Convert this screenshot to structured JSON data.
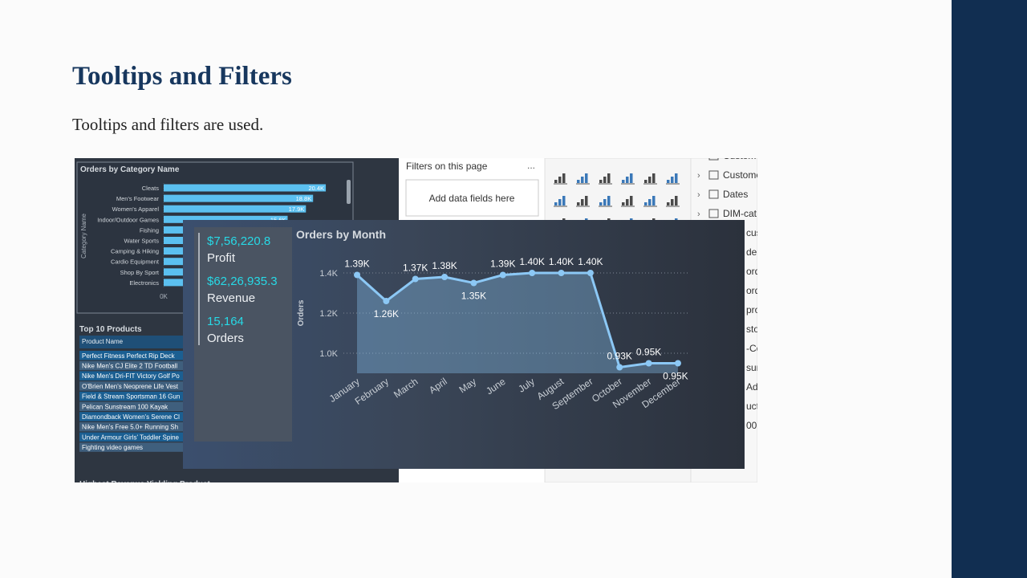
{
  "slide": {
    "title": "Tooltips and Filters",
    "body": "Tooltips and filters are used."
  },
  "screenshot": {
    "bar_chart": {
      "type": "bar",
      "title": "Orders by Category Name",
      "y_label": "Category Name",
      "categories": [
        "Cleats",
        "Men's Footwear",
        "Women's Apparel",
        "Indoor/Outdoor Games",
        "Fishing",
        "Water Sports",
        "Camping & Hiking",
        "Cardio Equipment",
        "Shop By Sport",
        "Electronics"
      ],
      "values": [
        20.4,
        18.8,
        17.9,
        15.6,
        15.0,
        13.2,
        12.4,
        11.5,
        10.6,
        9.8
      ],
      "value_labels": [
        "20.4K",
        "18.8K",
        "17.9K",
        "15.6K",
        null,
        null,
        null,
        null,
        null,
        null
      ],
      "xlim": [
        0,
        21
      ],
      "xticks": [
        {
          "value": 0,
          "label": "0K"
        }
      ],
      "color": "#5bc0f0"
    },
    "products": {
      "title": "Top 10 Products",
      "header": "Product Name",
      "rows": [
        "Perfect Fitness Perfect Rip Deck",
        "Nike Men's CJ Elite 2 TD Football",
        "Nike Men's Dri-FIT Victory Golf Po",
        "O'Brien Men's Neoprene Life Vest",
        "Field & Stream Sportsman 16 Gun",
        "Pelican Sunstream 100 Kayak",
        "Diamondback Women's Serene Cl",
        "Nike Men's Free 5.0+ Running Sh",
        "Under Armour Girls' Toddler Spine",
        "Fighting video games"
      ]
    },
    "next_title": "Highest Revenue Yielding Product",
    "filters": {
      "title": "Filters on this page",
      "menu": "...",
      "placeholder": "Add data fields here"
    },
    "fields": [
      "Custom",
      "Custome",
      "Dates",
      "DIM-cat",
      "cus",
      "dep",
      "ord",
      "ord",
      "pro",
      "sto",
      "-Co",
      "sure",
      "Ad",
      "uct",
      "00"
    ],
    "tooltip": [
      {
        "value": "$7,56,220.8",
        "label": "Profit"
      },
      {
        "value": "$62,26,935.3",
        "label": "Revenue"
      },
      {
        "value": "15,164",
        "label": "Orders"
      }
    ],
    "line_chart": {
      "type": "line",
      "title": "Orders by Month",
      "y_label": "Orders",
      "categories": [
        "January",
        "February",
        "March",
        "April",
        "May",
        "June",
        "July",
        "August",
        "September",
        "October",
        "November",
        "December"
      ],
      "values": [
        1.39,
        1.26,
        1.37,
        1.38,
        1.35,
        1.39,
        1.4,
        1.4,
        1.4,
        0.93,
        0.95,
        0.95
      ],
      "value_labels": [
        "1.39K",
        "1.26K",
        "1.37K",
        "1.38K",
        "1.35K",
        "1.39K",
        "1.40K",
        "1.40K",
        "1.40K",
        "0.93K",
        "0.95K",
        "0.95K"
      ],
      "ylim": [
        0.9,
        1.48
      ],
      "yticks": [
        {
          "value": 1.0,
          "label": "1.0K"
        },
        {
          "value": 1.2,
          "label": "1.2K"
        },
        {
          "value": 1.4,
          "label": "1.4K"
        }
      ],
      "grid": true,
      "color": "#8cc8f5"
    }
  }
}
